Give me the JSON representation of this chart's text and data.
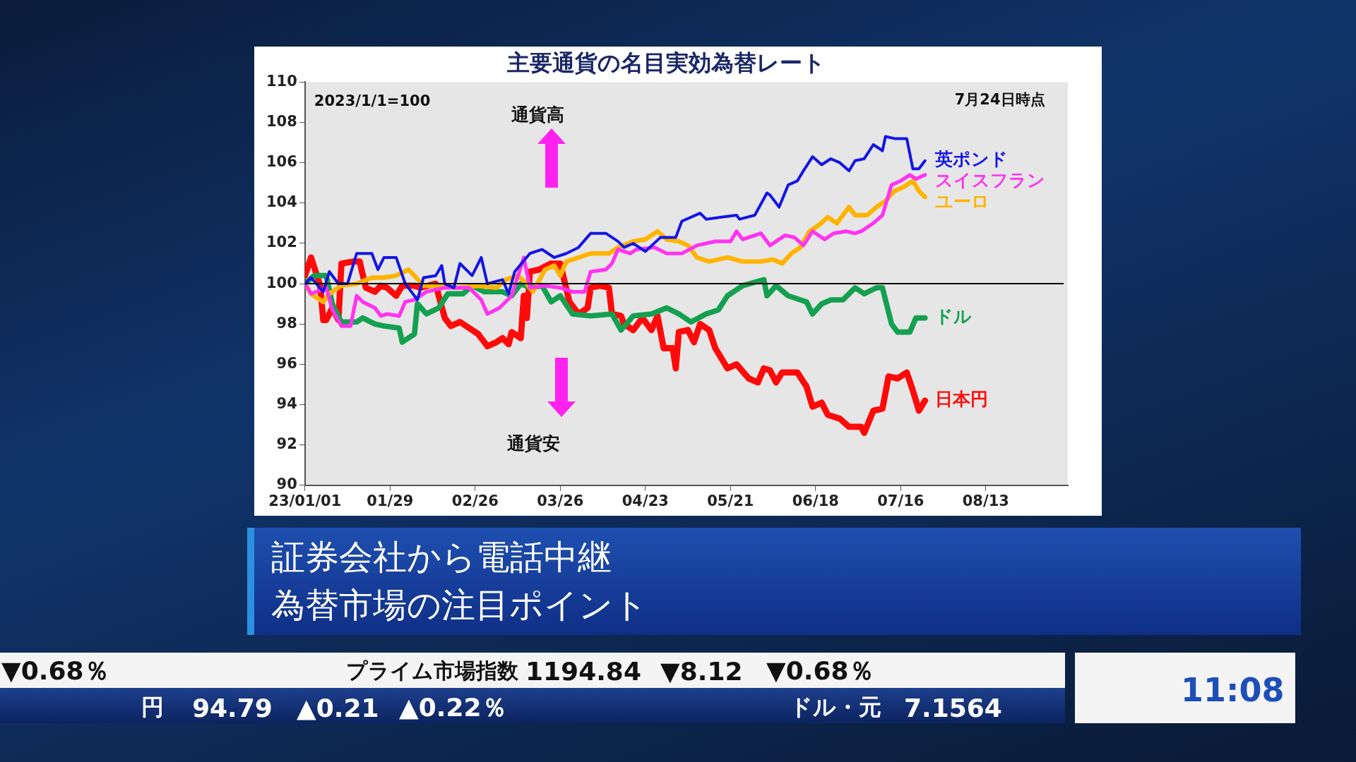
{
  "chart_data": {
    "type": "line",
    "title": "主要通貨の名目実効為替レート",
    "xlim": [
      "2023-01-01",
      "2023-09-09"
    ],
    "xticks": [
      {
        "value": "2023-01-01",
        "label": "23/01/01"
      },
      {
        "value": "2023-01-29",
        "label": "01/29"
      },
      {
        "value": "2023-02-26",
        "label": "02/26"
      },
      {
        "value": "2023-03-26",
        "label": "03/26"
      },
      {
        "value": "2023-04-23",
        "label": "04/23"
      },
      {
        "value": "2023-05-21",
        "label": "05/21"
      },
      {
        "value": "2023-06-18",
        "label": "06/18"
      },
      {
        "value": "2023-07-16",
        "label": "07/16"
      },
      {
        "value": "2023-08-13",
        "label": "08/13"
      }
    ],
    "ylim": [
      90,
      110
    ],
    "yticks": [
      90,
      92,
      94,
      96,
      98,
      100,
      102,
      104,
      106,
      108,
      110
    ],
    "ref_lines": [
      {
        "axis": "y",
        "value": 100,
        "color": "#000000"
      }
    ],
    "series": [
      {
        "name": "英ポンド",
        "color": "#1414e6",
        "x": [
          "2023-01-01",
          "2023-01-03",
          "2023-01-07",
          "2023-01-09",
          "2023-01-12",
          "2023-01-15",
          "2023-01-18",
          "2023-01-23",
          "2023-01-25",
          "2023-01-27",
          "2023-01-31",
          "2023-02-03",
          "2023-02-07",
          "2023-02-09",
          "2023-02-13",
          "2023-02-15",
          "2023-02-16",
          "2023-02-19",
          "2023-02-21",
          "2023-02-25",
          "2023-02-28",
          "2023-03-02",
          "2023-03-07",
          "2023-03-09",
          "2023-03-11",
          "2023-03-16",
          "2023-03-20",
          "2023-03-24",
          "2023-03-28",
          "2023-04-01",
          "2023-04-05",
          "2023-04-10",
          "2023-04-14",
          "2023-04-16",
          "2023-04-19",
          "2023-04-23",
          "2023-04-28",
          "2023-05-03",
          "2023-05-05",
          "2023-05-11",
          "2023-05-13",
          "2023-05-18",
          "2023-05-23",
          "2023-05-24",
          "2023-05-29",
          "2023-06-02",
          "2023-06-03",
          "2023-06-06",
          "2023-06-09",
          "2023-06-12",
          "2023-06-14",
          "2023-06-17",
          "2023-06-20",
          "2023-06-23",
          "2023-06-26",
          "2023-06-29",
          "2023-07-01",
          "2023-07-04",
          "2023-07-07",
          "2023-07-10",
          "2023-07-11",
          "2023-07-14",
          "2023-07-18",
          "2023-07-20",
          "2023-07-22",
          "2023-07-24"
        ],
        "values": [
          100,
          100.3,
          99.6,
          100.6,
          100,
          100,
          101.5,
          101.5,
          100.7,
          101.3,
          101.3,
          100,
          99.2,
          100.3,
          100.4,
          100.9,
          100,
          99.8,
          101,
          100.4,
          101.3,
          100,
          100.2,
          99.5,
          100.6,
          101.5,
          101.7,
          101.3,
          101.5,
          101.8,
          102.5,
          102.5,
          102.1,
          101.8,
          102,
          101.6,
          102.3,
          102.3,
          103.1,
          103.5,
          103.2,
          103.3,
          103.4,
          103.2,
          103.4,
          104.5,
          104.4,
          103.8,
          104.9,
          105.1,
          105.6,
          106.3,
          105.9,
          106.2,
          106,
          105.6,
          106.1,
          106.2,
          106.9,
          106.6,
          107.3,
          107.2,
          107.2,
          105.7,
          105.7,
          106.1
        ]
      },
      {
        "name": "スイスフラン",
        "color": "#ff33f0",
        "x": [
          "2023-01-01",
          "2023-01-03",
          "2023-01-08",
          "2023-01-10",
          "2023-01-13",
          "2023-01-16",
          "2023-01-18",
          "2023-01-20",
          "2023-01-24",
          "2023-01-26",
          "2023-01-28",
          "2023-02-01",
          "2023-02-03",
          "2023-02-06",
          "2023-02-10",
          "2023-02-16",
          "2023-02-24",
          "2023-02-28",
          "2023-03-02",
          "2023-03-06",
          "2023-03-10",
          "2023-03-14",
          "2023-03-16",
          "2023-03-21",
          "2023-03-26",
          "2023-03-30",
          "2023-04-03",
          "2023-04-05",
          "2023-04-10",
          "2023-04-12",
          "2023-04-14",
          "2023-04-18",
          "2023-04-20",
          "2023-04-26",
          "2023-04-30",
          "2023-05-05",
          "2023-05-10",
          "2023-05-16",
          "2023-05-21",
          "2023-05-23",
          "2023-05-25",
          "2023-05-31",
          "2023-06-03",
          "2023-06-08",
          "2023-06-11",
          "2023-06-14",
          "2023-06-17",
          "2023-06-21",
          "2023-06-24",
          "2023-06-28",
          "2023-07-01",
          "2023-07-03",
          "2023-07-07",
          "2023-07-10",
          "2023-07-13",
          "2023-07-16",
          "2023-07-19",
          "2023-07-21",
          "2023-07-24"
        ],
        "values": [
          100,
          99.5,
          99.8,
          98.7,
          97.9,
          97.9,
          99.4,
          99.1,
          98.8,
          98.4,
          98.5,
          98.4,
          99.1,
          99.2,
          99.6,
          99.8,
          99.8,
          99.2,
          98.5,
          98.8,
          99.4,
          101.3,
          99.8,
          99.9,
          99.8,
          99.6,
          99.6,
          100.6,
          100.7,
          101,
          101.7,
          101.5,
          101.7,
          101.8,
          101.5,
          101.5,
          101.9,
          102.1,
          102.1,
          102.6,
          102.2,
          102.5,
          101.9,
          102.4,
          102.3,
          101.9,
          102.6,
          102.2,
          102.5,
          102.6,
          102.5,
          102.6,
          103,
          103.4,
          104.9,
          105.1,
          105.4,
          105.2,
          105.4
        ]
      },
      {
        "name": "ユーロ",
        "color": "#ffb400",
        "x": [
          "2023-01-01",
          "2023-01-03",
          "2023-01-07",
          "2023-01-09",
          "2023-01-13",
          "2023-01-18",
          "2023-01-23",
          "2023-01-27",
          "2023-01-31",
          "2023-02-04",
          "2023-02-06",
          "2023-02-09",
          "2023-02-15",
          "2023-02-20",
          "2023-02-27",
          "2023-03-05",
          "2023-03-08",
          "2023-03-12",
          "2023-03-15",
          "2023-03-17",
          "2023-03-21",
          "2023-03-24",
          "2023-03-26",
          "2023-03-28",
          "2023-04-01",
          "2023-04-05",
          "2023-04-11",
          "2023-04-14",
          "2023-04-19",
          "2023-04-23",
          "2023-04-27",
          "2023-04-30",
          "2023-05-04",
          "2023-05-07",
          "2023-05-10",
          "2023-05-14",
          "2023-05-20",
          "2023-05-25",
          "2023-05-31",
          "2023-06-04",
          "2023-06-07",
          "2023-06-10",
          "2023-06-13",
          "2023-06-16",
          "2023-06-19",
          "2023-06-22",
          "2023-06-25",
          "2023-06-29",
          "2023-07-01",
          "2023-07-05",
          "2023-07-08",
          "2023-07-11",
          "2023-07-14",
          "2023-07-17",
          "2023-07-20",
          "2023-07-22",
          "2023-07-24"
        ],
        "values": [
          100,
          99.5,
          99.1,
          99.5,
          99.9,
          100,
          100.3,
          100.3,
          100.4,
          100.7,
          100.4,
          99.9,
          99.9,
          99.8,
          99.9,
          99.8,
          100.2,
          100.4,
          100,
          99.6,
          100.7,
          100.9,
          100.4,
          101.1,
          101.3,
          101.5,
          101.5,
          101.8,
          102.1,
          102.2,
          102.6,
          102.2,
          102.1,
          101.9,
          101.3,
          101.1,
          101.3,
          101.1,
          101.1,
          101.2,
          101,
          101.5,
          101.8,
          102.6,
          102.9,
          103.3,
          103,
          103.8,
          103.4,
          103.4,
          103.8,
          104.1,
          104.6,
          104.8,
          105.1,
          104.6,
          104.3
        ]
      },
      {
        "name": "ドル",
        "color": "#14a050",
        "x": [
          "2023-01-01",
          "2023-01-04",
          "2023-01-08",
          "2023-01-10",
          "2023-01-13",
          "2023-01-18",
          "2023-01-20",
          "2023-01-24",
          "2023-01-27",
          "2023-02-01",
          "2023-02-02",
          "2023-02-06",
          "2023-02-07",
          "2023-02-10",
          "2023-02-14",
          "2023-02-17",
          "2023-02-22",
          "2023-02-25",
          "2023-03-01",
          "2023-03-07",
          "2023-03-10",
          "2023-03-13",
          "2023-03-16",
          "2023-03-20",
          "2023-03-23",
          "2023-03-26",
          "2023-03-30",
          "2023-04-05",
          "2023-04-12",
          "2023-04-15",
          "2023-04-19",
          "2023-04-25",
          "2023-04-30",
          "2023-05-04",
          "2023-05-08",
          "2023-05-13",
          "2023-05-17",
          "2023-05-20",
          "2023-05-25",
          "2023-06-01",
          "2023-06-02",
          "2023-06-05",
          "2023-06-09",
          "2023-06-15",
          "2023-06-17",
          "2023-06-20",
          "2023-06-23",
          "2023-06-27",
          "2023-07-01",
          "2023-07-04",
          "2023-07-08",
          "2023-07-10",
          "2023-07-13",
          "2023-07-15",
          "2023-07-19",
          "2023-07-21",
          "2023-07-24"
        ],
        "values": [
          100,
          100.4,
          100.4,
          99,
          98.1,
          98.1,
          98.3,
          98,
          97.9,
          97.8,
          97.1,
          97.5,
          99,
          98.5,
          98.8,
          99.5,
          99.5,
          99.9,
          99.6,
          99.6,
          99.4,
          100,
          99.8,
          99.9,
          99.1,
          99.4,
          98.5,
          98.4,
          98.5,
          97.7,
          98.4,
          98.5,
          98.8,
          98.5,
          98.1,
          98.5,
          98.7,
          99.4,
          99.9,
          100.2,
          99.4,
          99.9,
          99.4,
          99.1,
          98.5,
          99,
          99.2,
          99.2,
          99.8,
          99.5,
          99.8,
          99.8,
          98,
          97.6,
          97.6,
          98.3,
          98.3
        ]
      },
      {
        "name": "日本円",
        "color": "#ff0a0a",
        "x": [
          "2023-01-01",
          "2023-01-03",
          "2023-01-06",
          "2023-01-07",
          "2023-01-08",
          "2023-01-10",
          "2023-01-12",
          "2023-01-13",
          "2023-01-17",
          "2023-01-19",
          "2023-01-21",
          "2023-01-24",
          "2023-01-26",
          "2023-01-28",
          "2023-01-31",
          "2023-02-02",
          "2023-02-06",
          "2023-02-08",
          "2023-02-13",
          "2023-02-14",
          "2023-02-16",
          "2023-02-18",
          "2023-02-21",
          "2023-02-24",
          "2023-02-27",
          "2023-03-02",
          "2023-03-05",
          "2023-03-07",
          "2023-03-09",
          "2023-03-10",
          "2023-03-13",
          "2023-03-14",
          "2023-03-15",
          "2023-03-16",
          "2023-03-19",
          "2023-03-23",
          "2023-03-26",
          "2023-03-29",
          "2023-04-01",
          "2023-04-04",
          "2023-04-05",
          "2023-04-08",
          "2023-04-11",
          "2023-04-12",
          "2023-04-15",
          "2023-04-16",
          "2023-04-19",
          "2023-04-22",
          "2023-04-25",
          "2023-04-27",
          "2023-04-29",
          "2023-05-02",
          "2023-05-03",
          "2023-05-04",
          "2023-05-07",
          "2023-05-09",
          "2023-05-11",
          "2023-05-14",
          "2023-05-16",
          "2023-05-20",
          "2023-05-23",
          "2023-05-27",
          "2023-05-30",
          "2023-06-01",
          "2023-06-03",
          "2023-06-05",
          "2023-06-07",
          "2023-06-12",
          "2023-06-15",
          "2023-06-17",
          "2023-06-20",
          "2023-06-22",
          "2023-06-26",
          "2023-06-29",
          "2023-07-03",
          "2023-07-04",
          "2023-07-07",
          "2023-07-10",
          "2023-07-12",
          "2023-07-15",
          "2023-07-18",
          "2023-07-20",
          "2023-07-22",
          "2023-07-24"
        ],
        "values": [
          100.4,
          101.3,
          99.9,
          98.2,
          98.2,
          98.8,
          98.2,
          101,
          101.1,
          101.1,
          99.8,
          99.6,
          99.9,
          99.8,
          99.4,
          99.9,
          99.9,
          99.8,
          100,
          99.4,
          98.3,
          97.9,
          98.1,
          97.8,
          97.5,
          96.9,
          97.1,
          97.3,
          97,
          97.6,
          97.3,
          99.4,
          98.3,
          100.6,
          100.7,
          101,
          101,
          99.1,
          98.5,
          98.8,
          99.8,
          99.9,
          99.8,
          98.5,
          98.4,
          98,
          97.7,
          98.3,
          97.7,
          98.4,
          96.8,
          96.8,
          95.8,
          97.6,
          97.7,
          97.1,
          98,
          97.7,
          96.8,
          95.8,
          96,
          95.3,
          95.1,
          95.8,
          95.7,
          95.1,
          95.6,
          95.6,
          94.9,
          93.9,
          94.1,
          93.5,
          93.3,
          92.9,
          92.9,
          92.6,
          93.7,
          93.8,
          95.4,
          95.3,
          95.6,
          94.7,
          93.7,
          94.2
        ]
      }
    ],
    "annotations": [
      "2023/1/1=100",
      "7月24日時点",
      "通貨高",
      "通貨安",
      "証券会社から電話中継",
      "為替市場の注目ポイント",
      "▼0.68％",
      "プライム市場指数",
      "1194.84",
      "▼8.12",
      "▼0.68％",
      "円",
      "94.79",
      "▲0.21",
      "▲0.22％",
      "ドル・元",
      "7.1564",
      "11:08"
    ]
  }
}
